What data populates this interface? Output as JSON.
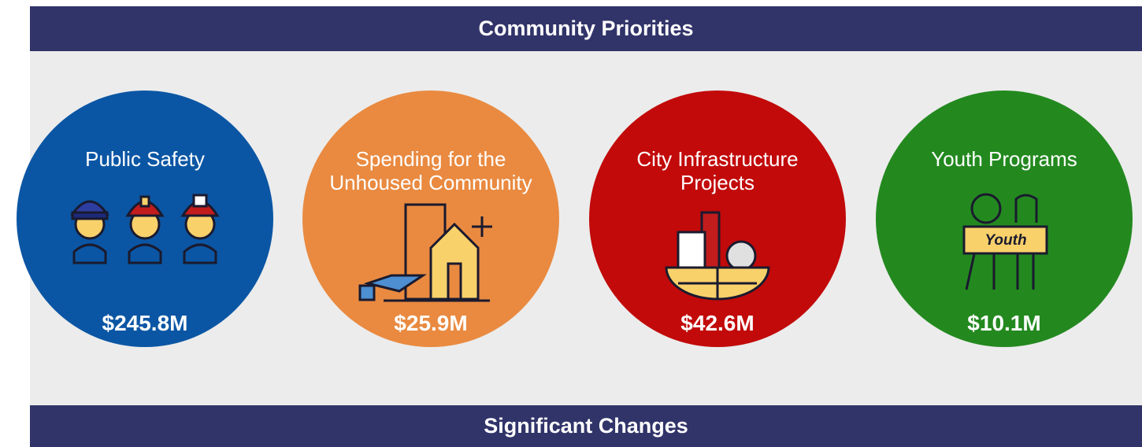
{
  "header": {
    "title": "Community Priorities"
  },
  "priorities": [
    {
      "label": "Public Safety",
      "amount": "$245.8M"
    },
    {
      "label": "Spending for the Unhoused Community",
      "amount": "$25.9M"
    },
    {
      "label": "City Infrastructure Projects",
      "amount": "$42.6M"
    },
    {
      "label": "Youth Programs",
      "amount": "$10.1M",
      "icon_text": "Youth"
    }
  ],
  "footer": {
    "title": "Significant Changes"
  }
}
